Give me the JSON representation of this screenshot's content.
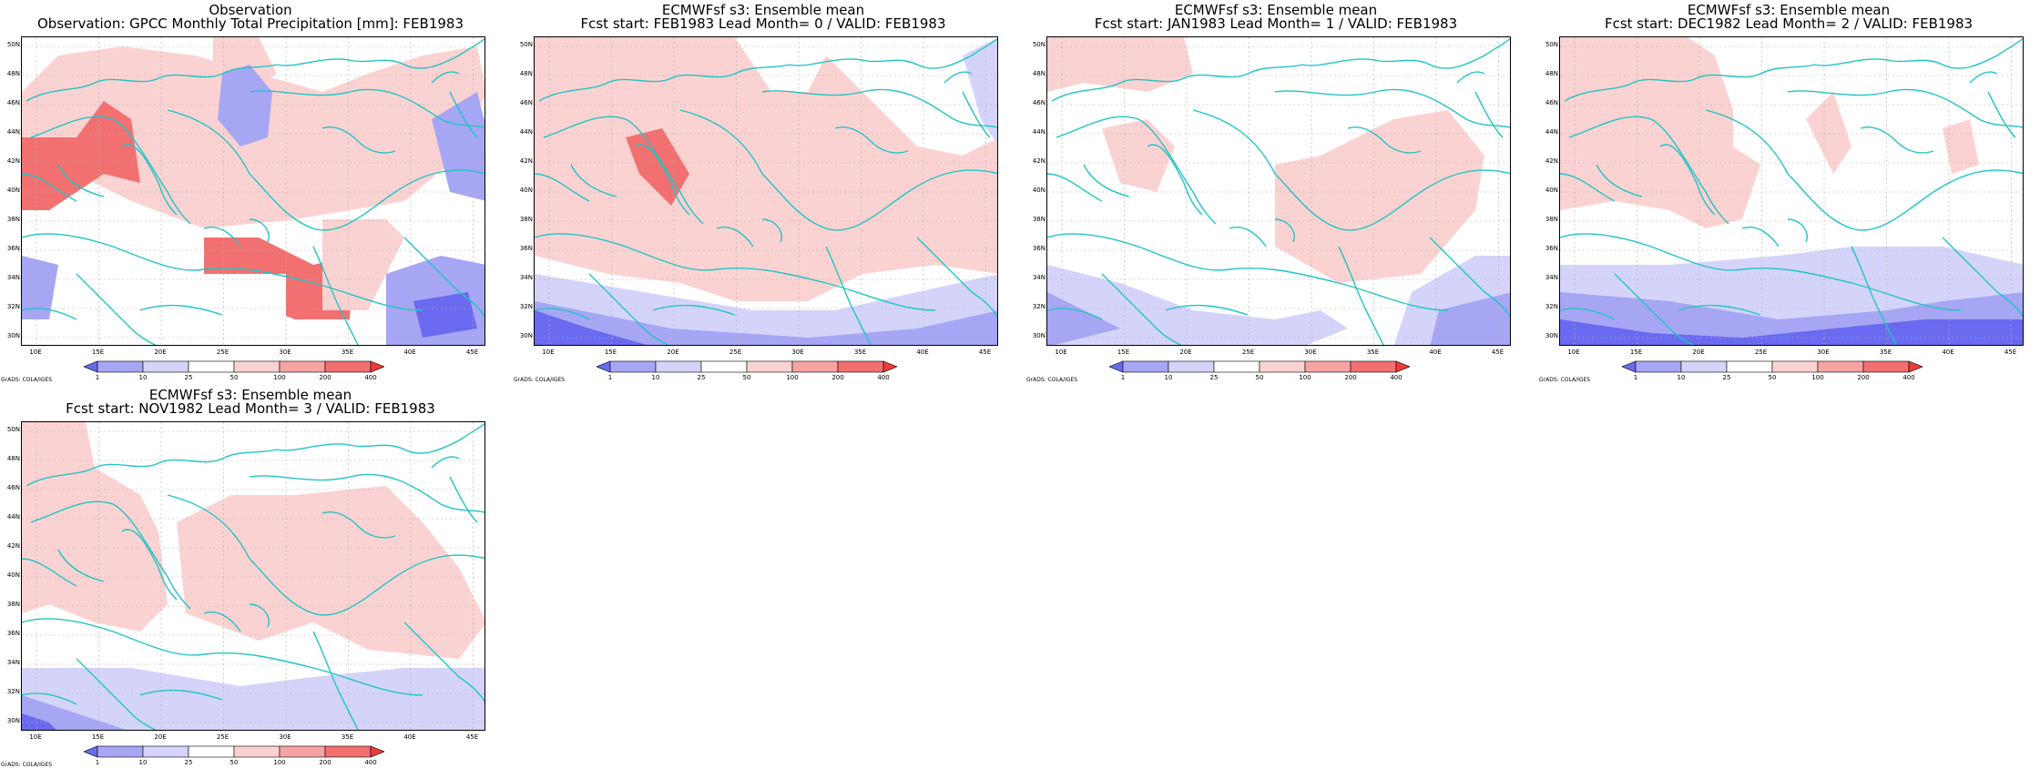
{
  "panels": [
    {
      "title1": "Observation",
      "title2": "Observation: GPCC Monthly Total Precipitation [mm]: FEB1983",
      "kind": "obs"
    },
    {
      "title1": "ECMWFsf s3: Ensemble mean",
      "title2": "Fcst start: FEB1983  Lead Month= 0 / VALID: FEB1983",
      "kind": "lead0"
    },
    {
      "title1": "ECMWFsf s3: Ensemble mean",
      "title2": "Fcst start: JAN1983  Lead Month= 1 / VALID: FEB1983",
      "kind": "lead1"
    },
    {
      "title1": "ECMWFsf s3: Ensemble mean",
      "title2": "Fcst start: DEC1982  Lead Month= 2 / VALID: FEB1983",
      "kind": "lead2"
    },
    {
      "title1": "ECMWFsf s3: Ensemble mean",
      "title2": "Fcst start: NOV1982  Lead Month= 3 / VALID: FEB1983",
      "kind": "lead3"
    }
  ],
  "lat_ticks": [
    "50N",
    "48N",
    "46N",
    "44N",
    "42N",
    "40N",
    "38N",
    "36N",
    "34N",
    "32N",
    "30N"
  ],
  "lon_ticks": [
    "10E",
    "15E",
    "20E",
    "25E",
    "30E",
    "35E",
    "40E",
    "45E"
  ],
  "colorbar": {
    "levels": [
      "1",
      "10",
      "25",
      "50",
      "100",
      "200",
      "400"
    ],
    "colors": [
      "#6a6af0",
      "#a6a6f5",
      "#d4d4fb",
      "#ffffff",
      "#fbd2d2",
      "#f7a3a3",
      "#f27070",
      "#ec3b3b"
    ]
  },
  "credit": "GrADS: COLA/IGES",
  "colors": {
    "coast": "#22c4c4",
    "grid": "#b0b0b0"
  }
}
